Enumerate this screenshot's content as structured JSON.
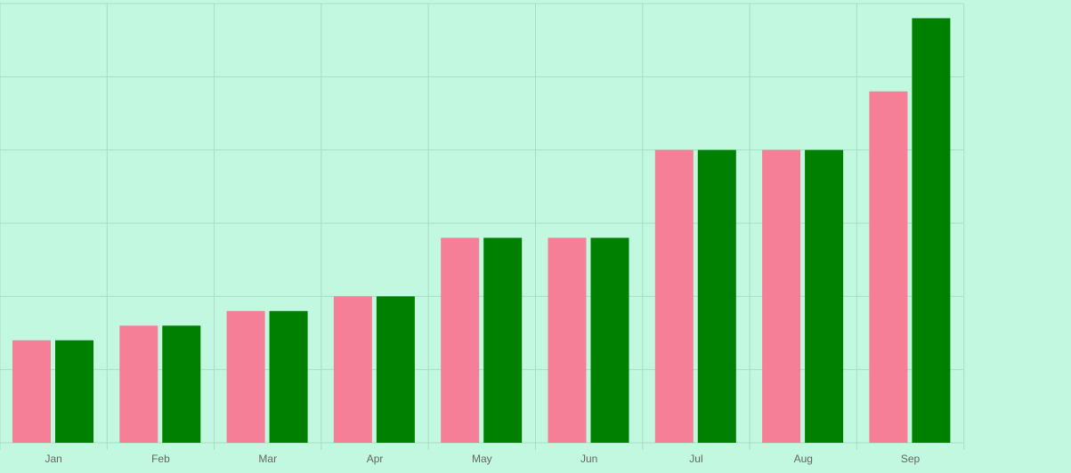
{
  "colors": {
    "background": "#c2f7e0",
    "grid": "#a9dcc6",
    "axis_text": "#666666",
    "series_1": "#f47f96",
    "series_2": "#008000"
  },
  "chart_data": {
    "type": "bar",
    "categories": [
      "Jan",
      "Feb",
      "Mar",
      "Apr",
      "May",
      "Jun",
      "Jul",
      "Aug",
      "Sep"
    ],
    "series": [
      {
        "color": "#f47f96",
        "values": [
          7,
          8,
          9,
          10,
          14,
          14,
          20,
          20,
          24
        ]
      },
      {
        "color": "#008000",
        "values": [
          7,
          8,
          9,
          10,
          14,
          14,
          20,
          20,
          29
        ]
      }
    ],
    "ylim": [
      0,
      30
    ],
    "grid": true,
    "y_tick_labels_visible": false,
    "legend": "none"
  }
}
